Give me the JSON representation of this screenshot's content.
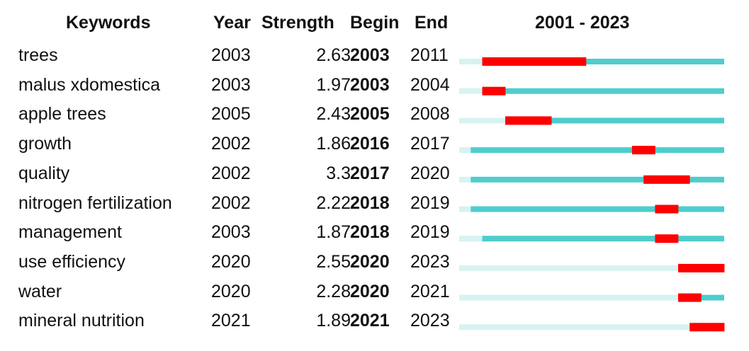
{
  "headers": {
    "keywords": "Keywords",
    "year": "Year",
    "strength": "Strength",
    "begin": "Begin",
    "end": "End",
    "range": "2001 - 2023"
  },
  "chart_data": {
    "type": "table",
    "range_start": 2001,
    "range_end": 2023,
    "colors": {
      "before": "#d8f2f2",
      "active": "#4ecdcc",
      "burst": "#ff0000"
    },
    "rows": [
      {
        "keyword": "trees",
        "year": "2003",
        "strength": "2.63",
        "begin": "2003",
        "end": "2011"
      },
      {
        "keyword": "malus xdomestica",
        "year": "2003",
        "strength": "1.97",
        "begin": "2003",
        "end": "2004"
      },
      {
        "keyword": "apple trees",
        "year": "2005",
        "strength": "2.43",
        "begin": "2005",
        "end": "2008"
      },
      {
        "keyword": "growth",
        "year": "2002",
        "strength": "1.86",
        "begin": "2016",
        "end": "2017"
      },
      {
        "keyword": "quality",
        "year": "2002",
        "strength": "3.3",
        "begin": "2017",
        "end": "2020"
      },
      {
        "keyword": "nitrogen fertilization",
        "year": "2002",
        "strength": "2.22",
        "begin": "2018",
        "end": "2019"
      },
      {
        "keyword": "management",
        "year": "2003",
        "strength": "1.87",
        "begin": "2018",
        "end": "2019"
      },
      {
        "keyword": "use efficiency",
        "year": "2020",
        "strength": "2.55",
        "begin": "2020",
        "end": "2023"
      },
      {
        "keyword": "water",
        "year": "2020",
        "strength": "2.28",
        "begin": "2020",
        "end": "2021"
      },
      {
        "keyword": "mineral nutrition",
        "year": "2021",
        "strength": "1.89",
        "begin": "2021",
        "end": "2023"
      }
    ]
  }
}
